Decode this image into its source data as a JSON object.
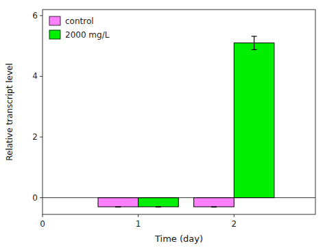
{
  "chart_data": {
    "type": "bar",
    "x": [
      1,
      2
    ],
    "series": [
      {
        "name": "control",
        "color": "#FF80FF",
        "values": [
          -0.3,
          -0.3
        ],
        "errors": [
          0.0,
          0.0
        ]
      },
      {
        "name": "2000 mg/L",
        "color": "#00EE00",
        "values": [
          -0.3,
          5.1
        ],
        "errors": [
          0.0,
          0.22
        ]
      }
    ],
    "xlim": [
      0.0,
      2.85
    ],
    "xticks": [
      0,
      1,
      2
    ],
    "ylim": [
      -0.55,
      6.2
    ],
    "yticks": [
      0,
      2,
      4,
      6
    ],
    "xlabel": "Time (day)",
    "ylabel": "Relative transcript level",
    "legend": "upper-left",
    "grid": false
  }
}
